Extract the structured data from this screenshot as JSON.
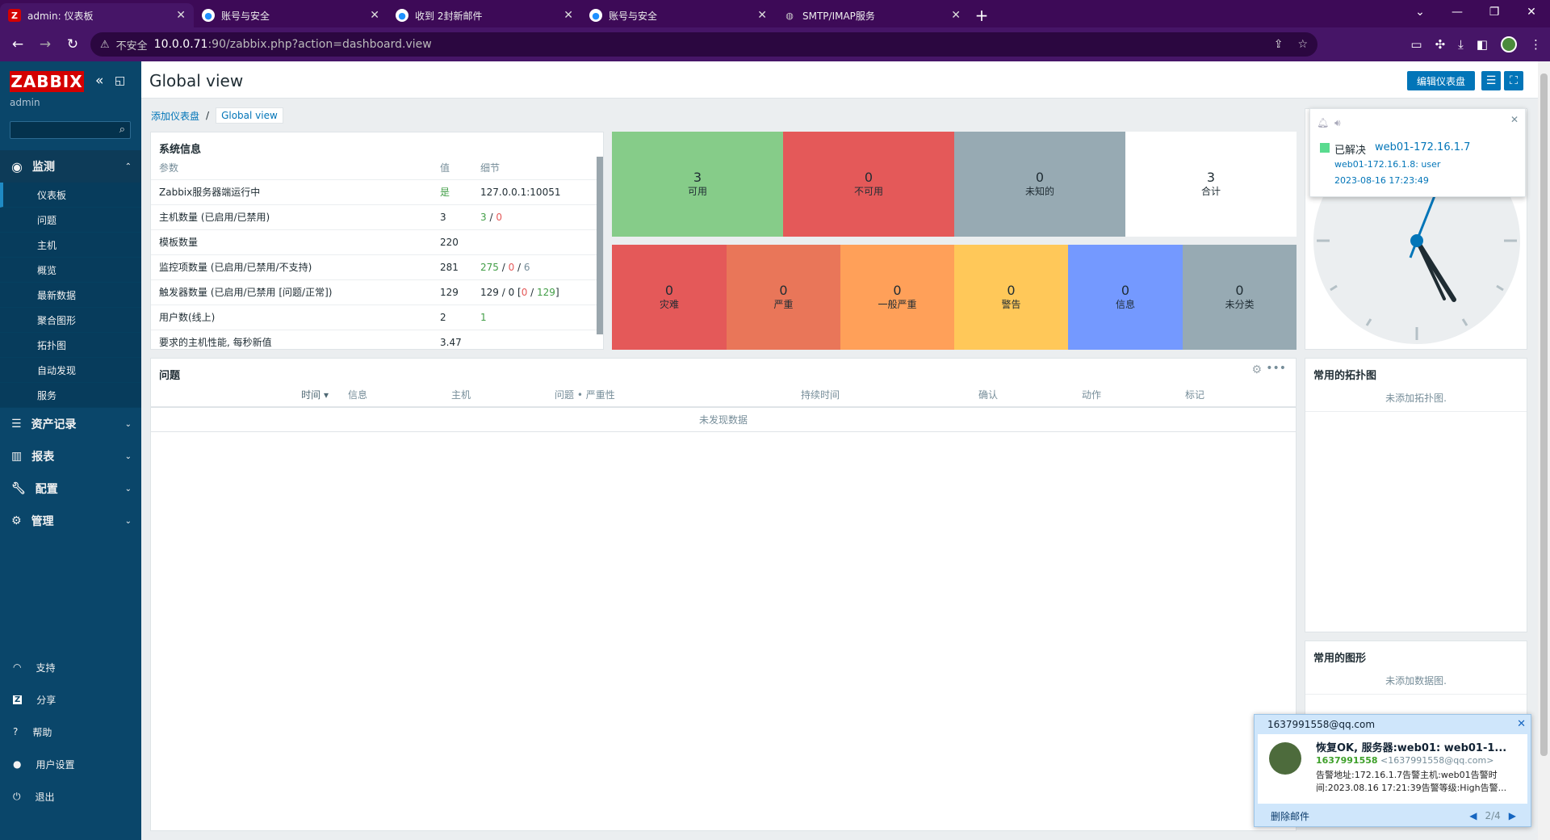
{
  "browser": {
    "tabs": [
      {
        "title": "admin: 仪表板",
        "favicon": "Z"
      },
      {
        "title": "账号与安全",
        "favicon": "qq"
      },
      {
        "title": "收到 2封新邮件",
        "favicon": "qq"
      },
      {
        "title": "账号与安全",
        "favicon": "qq"
      },
      {
        "title": "SMTP/IMAP服务",
        "favicon": "globe"
      }
    ],
    "security": "不安全",
    "url_host": "10.0.0.71",
    "url_rest": ":90/zabbix.php?action=dashboard.view"
  },
  "sidebar": {
    "logo": "ZABBIX",
    "user": "admin",
    "sections": [
      {
        "label": "监测",
        "items": [
          "仪表板",
          "问题",
          "主机",
          "概览",
          "最新数据",
          "聚合图形",
          "拓扑图",
          "自动发现",
          "服务"
        ]
      },
      {
        "label": "资产记录"
      },
      {
        "label": "报表"
      },
      {
        "label": "配置"
      },
      {
        "label": "管理"
      }
    ],
    "footer": [
      "支持",
      "分享",
      "帮助",
      "用户设置",
      "退出"
    ]
  },
  "header": {
    "title": "Global view",
    "edit_button": "编辑仪表盘"
  },
  "breadcrumb": {
    "parent": "添加仪表盘",
    "current": "Global view"
  },
  "sysinfo": {
    "title": "系统信息",
    "columns": [
      "参数",
      "值",
      "细节"
    ],
    "rows": [
      {
        "param": "Zabbix服务器端运行中",
        "value": "是",
        "detail": "127.0.0.1:10051"
      },
      {
        "param": "主机数量 (已启用/已禁用)",
        "value": "3",
        "d1": "3",
        "d2": "0"
      },
      {
        "param": "模板数量",
        "value": "220",
        "detail": ""
      },
      {
        "param": "监控项数量 (已启用/已禁用/不支持)",
        "value": "281",
        "d1": "275",
        "d2": "0",
        "d3": "6"
      },
      {
        "param": "触发器数量 (已启用/已禁用 [问题/正常])",
        "value": "129",
        "d1": "129",
        "d2": "0",
        "d3": "0",
        "d4": "129"
      },
      {
        "param": "用户数(线上)",
        "value": "2",
        "d1": "1"
      },
      {
        "param": "要求的主机性能, 每秒新值",
        "value": "3.47",
        "detail": ""
      }
    ]
  },
  "host_availability": [
    {
      "count": "3",
      "label": "可用",
      "color": "#86cc89"
    },
    {
      "count": "0",
      "label": "不可用",
      "color": "#e45959"
    },
    {
      "count": "0",
      "label": "未知的",
      "color": "#97aab3"
    },
    {
      "count": "3",
      "label": "合计",
      "color": "#ffffff"
    }
  ],
  "severities": [
    {
      "count": "0",
      "label": "灾难",
      "color": "#e45959"
    },
    {
      "count": "0",
      "label": "严重",
      "color": "#e97659"
    },
    {
      "count": "0",
      "label": "一般严重",
      "color": "#ffa059"
    },
    {
      "count": "0",
      "label": "警告",
      "color": "#ffc859"
    },
    {
      "count": "0",
      "label": "信息",
      "color": "#7499ff"
    },
    {
      "count": "0",
      "label": "未分类",
      "color": "#97aab3"
    }
  ],
  "problems": {
    "title": "问题",
    "columns": [
      "时间 ▾",
      "信息",
      "主机",
      "问题 • 严重性",
      "持续时间",
      "确认",
      "动作",
      "标记"
    ],
    "empty": "未发现数据"
  },
  "maps_widget": {
    "title": "常用的拓扑图",
    "empty": "未添加拓扑图."
  },
  "graphs_widget": {
    "title": "常用的图形",
    "empty": "未添加数据图."
  },
  "notification": {
    "status": "已解决",
    "host": "web01-172.16.1.7",
    "line": "web01-172.16.1.8: user",
    "time": "2023-08-16 17:23:49"
  },
  "mail_popup": {
    "account": "1637991558@qq.com",
    "subject": "恢复OK, 服务器:web01: web01-1...",
    "sender_name": "1637991558",
    "sender_addr": "<1637991558@qq.com>",
    "preview1": "告警地址:172.16.1.7告警主机:web01告警时",
    "preview2": "间:2023.08.16 17:21:39告警等级:High告警...",
    "delete": "删除邮件",
    "pager": "2/4"
  }
}
